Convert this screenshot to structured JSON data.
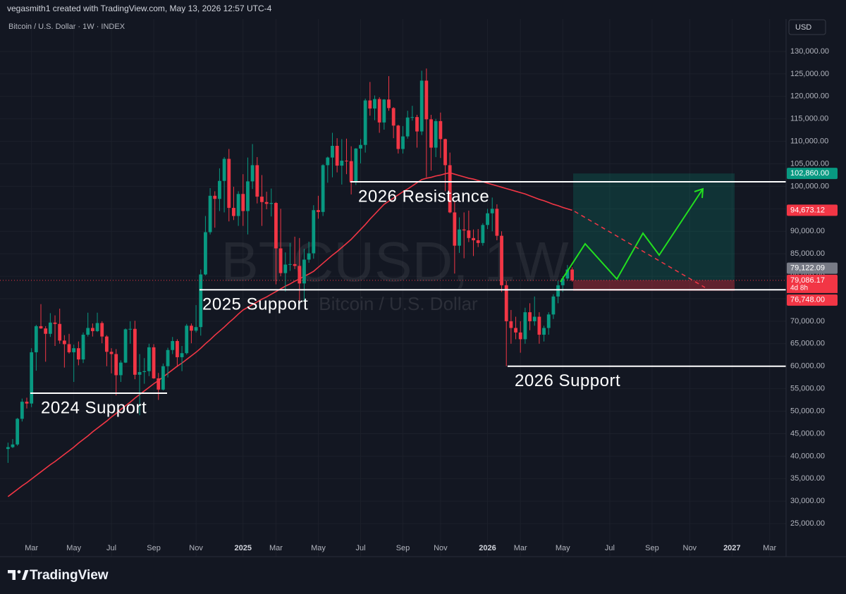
{
  "header": "vegasmith1 created with TradingView.com, May 13, 2026 12:57 UTC-4",
  "footer": {
    "brand": "TradingView"
  },
  "chart_data": {
    "type": "candlestick",
    "title": "Bitcoin / U.S. Dollar · 1W · INDEX",
    "watermark": "BTCUSD, 1W",
    "watermark_subtitle": "Bitcoin / U.S. Dollar",
    "currency": "USD",
    "up_color": "#089981",
    "down_color": "#f23645",
    "grid": true,
    "ylim": [
      17650,
      137200
    ],
    "yticks": [
      {
        "value": 25000,
        "label": "25,000.00"
      },
      {
        "value": 30000,
        "label": "30,000.00"
      },
      {
        "value": 35000,
        "label": "35,000.00"
      },
      {
        "value": 40000,
        "label": "40,000.00"
      },
      {
        "value": 45000,
        "label": "45,000.00"
      },
      {
        "value": 50000,
        "label": "50,000.00"
      },
      {
        "value": 55000,
        "label": "55,000.00"
      },
      {
        "value": 60000,
        "label": "60,000.00"
      },
      {
        "value": 65000,
        "label": "65,000.00"
      },
      {
        "value": 70000,
        "label": "70,000.00"
      },
      {
        "value": 75000,
        "label": "75,000.00"
      },
      {
        "value": 80000,
        "label": "80,000.00"
      },
      {
        "value": 85000,
        "label": "85,000.00"
      },
      {
        "value": 90000,
        "label": "90,000.00"
      },
      {
        "value": 95000,
        "label": "95,000.00"
      },
      {
        "value": 100000,
        "label": "100,000.00"
      },
      {
        "value": 105000,
        "label": "105,000.00"
      },
      {
        "value": 110000,
        "label": "110,000.00"
      },
      {
        "value": 115000,
        "label": "115,000.00"
      },
      {
        "value": 120000,
        "label": "120,000.00"
      },
      {
        "value": 125000,
        "label": "125,000.00"
      },
      {
        "value": 130000,
        "label": "130,000.00"
      }
    ],
    "categories": [
      null,
      null,
      null,
      null,
      null,
      "Mar",
      null,
      null,
      null,
      null,
      null,
      null,
      null,
      null,
      "May",
      null,
      null,
      null,
      null,
      null,
      null,
      null,
      "Jul",
      null,
      null,
      null,
      null,
      null,
      null,
      null,
      null,
      "Sep",
      null,
      null,
      null,
      null,
      null,
      null,
      null,
      null,
      "Nov",
      null,
      null,
      null,
      null,
      null,
      null,
      null,
      null,
      null,
      "2025",
      null,
      null,
      null,
      null,
      null,
      null,
      "Mar",
      null,
      null,
      null,
      null,
      null,
      null,
      null,
      null,
      "May",
      null,
      null,
      null,
      null,
      null,
      null,
      null,
      null,
      "Jul",
      null,
      null,
      null,
      null,
      null,
      null,
      null,
      null,
      "Sep",
      null,
      null,
      null,
      null,
      null,
      null,
      null,
      "Nov",
      null,
      null,
      null,
      null,
      null,
      null,
      null,
      null,
      null,
      "2026",
      null,
      null,
      null,
      null,
      null,
      null,
      "Mar",
      null,
      null,
      null,
      null,
      null,
      null,
      null,
      null,
      "May",
      null,
      null,
      null,
      null,
      null,
      null,
      null,
      null,
      null,
      "Jul",
      null,
      null,
      null,
      null,
      null,
      null,
      null,
      null,
      "Sep",
      null,
      null,
      null,
      null,
      null,
      null,
      null,
      "Nov",
      null,
      null,
      null,
      null,
      null,
      null,
      null,
      null,
      "2027",
      null,
      null,
      null,
      null,
      null,
      null,
      null,
      "Mar",
      null,
      null,
      null
    ],
    "open": [
      41600,
      42000,
      42600,
      48300,
      52100,
      51700,
      63100,
      68900,
      68400,
      67200,
      69700,
      69400,
      65700,
      64900,
      63100,
      64000,
      61500,
      67000,
      68500,
      67800,
      69600,
      66600,
      63200,
      62700,
      58000,
      60800,
      68200,
      68300,
      58100,
      58700,
      58900,
      64200,
      57300,
      54800,
      60000,
      63600,
      65600,
      62000,
      62900,
      69000,
      67900,
      68700,
      80400,
      89800,
      97900,
      97200,
      101200,
      106100,
      95200,
      93400,
      98300,
      94500,
      101100,
      104700,
      97700,
      96500,
      96100,
      96300,
      86200,
      80700,
      82600,
      82700,
      82300,
      78400,
      83700,
      85100,
      94700,
      94300,
      104700,
      106400,
      109000,
      104600,
      105700,
      105600,
      100900,
      108400,
      109200,
      119100,
      117300,
      119400,
      114200,
      119300,
      117400,
      113500,
      108300,
      111100,
      115300,
      115400,
      112200,
      123500,
      114900,
      108600,
      114500,
      110500,
      104700,
      94200,
      86800,
      90400,
      90200,
      88500,
      88000,
      87400,
      91400,
      94000,
      95000,
      89000,
      78000,
      70000,
      68500,
      67500,
      66000,
      72000,
      70000,
      71000,
      67000,
      68500,
      71500,
      75500,
      78000,
      79500,
      81500,
      null,
      null,
      null,
      null,
      null,
      null,
      null,
      null,
      null,
      null,
      null,
      null,
      null,
      null,
      null,
      null,
      null,
      null,
      null,
      null,
      null,
      null,
      null,
      null,
      null,
      null,
      null,
      null,
      null,
      null,
      null,
      null,
      null,
      null,
      null,
      null,
      null,
      null,
      null,
      null,
      null,
      null,
      null,
      null,
      null
    ],
    "high": [
      43000,
      43800,
      48500,
      52800,
      53000,
      64000,
      69200,
      73800,
      68900,
      71800,
      71300,
      72800,
      66900,
      67200,
      64800,
      65500,
      67500,
      71900,
      69500,
      71900,
      70000,
      66900,
      64000,
      63800,
      61300,
      68400,
      70000,
      70100,
      62700,
      61800,
      65000,
      64900,
      58500,
      60600,
      64100,
      66500,
      66000,
      64500,
      69400,
      69500,
      73600,
      81500,
      93400,
      99600,
      98900,
      104000,
      106500,
      108300,
      99900,
      98900,
      102700,
      106400,
      109400,
      106500,
      102500,
      98800,
      99500,
      96500,
      95000,
      85300,
      87400,
      88800,
      88500,
      86100,
      87700,
      95800,
      97900,
      104900,
      106600,
      111900,
      110700,
      110500,
      110600,
      108900,
      108500,
      110500,
      119500,
      123200,
      120200,
      119800,
      119400,
      124500,
      117600,
      113700,
      113400,
      116800,
      117900,
      115900,
      125700,
      126200,
      115900,
      115000,
      116400,
      110600,
      107500,
      96600,
      93100,
      94200,
      94600,
      90400,
      90500,
      91800,
      95000,
      97500,
      96000,
      90000,
      79000,
      72500,
      71000,
      70000,
      73000,
      74000,
      75500,
      72000,
      69000,
      72000,
      76000,
      79000,
      80000,
      82500,
      82000,
      null,
      null,
      null,
      null,
      null,
      null,
      null,
      null,
      null,
      null,
      null,
      null,
      null,
      null,
      null,
      null,
      null,
      null,
      null,
      null,
      null,
      null,
      null,
      null,
      null,
      null,
      null,
      null,
      null,
      null,
      null,
      null,
      null,
      null,
      null,
      null,
      null,
      null,
      null,
      null,
      null,
      null,
      null,
      null,
      null
    ],
    "low": [
      38500,
      41800,
      42300,
      47700,
      50600,
      50900,
      59000,
      68300,
      61000,
      66500,
      64500,
      65000,
      59700,
      62800,
      56500,
      60200,
      60700,
      66600,
      66600,
      67600,
      65100,
      60000,
      58400,
      53500,
      56500,
      60700,
      65000,
      57100,
      49100,
      56100,
      57800,
      57200,
      52500,
      54600,
      57500,
      62700,
      59800,
      58900,
      62600,
      65100,
      67500,
      66800,
      80200,
      89300,
      90800,
      94500,
      94200,
      92200,
      92500,
      91200,
      91200,
      89300,
      99400,
      96200,
      91200,
      94900,
      93300,
      78200,
      80000,
      76600,
      81200,
      81600,
      74400,
      74600,
      83000,
      83900,
      92800,
      93400,
      100800,
      102000,
      103100,
      100400,
      102700,
      98200,
      100300,
      105100,
      107500,
      115700,
      114700,
      111900,
      112600,
      116800,
      110700,
      107300,
      107300,
      110600,
      114600,
      108600,
      111400,
      102000,
      103500,
      106500,
      106300,
      98900,
      94000,
      80600,
      85200,
      84000,
      87600,
      84500,
      86500,
      86800,
      90500,
      90000,
      88000,
      76500,
      60000,
      65000,
      66000,
      63000,
      65000,
      68000,
      69000,
      65000,
      65500,
      67000,
      70500,
      74000,
      76500,
      79000,
      78800,
      null,
      null,
      null,
      null,
      null,
      null,
      null,
      null,
      null,
      null,
      null,
      null,
      null,
      null,
      null,
      null,
      null,
      null,
      null,
      null,
      null,
      null,
      null,
      null,
      null,
      null,
      null,
      null,
      null,
      null,
      null,
      null,
      null,
      null,
      null,
      null,
      null,
      null,
      null,
      null,
      null,
      null,
      null,
      null,
      null
    ],
    "close": [
      42000,
      42600,
      48300,
      52100,
      51700,
      63100,
      68900,
      68400,
      67200,
      69700,
      69400,
      65700,
      64900,
      63100,
      64000,
      61500,
      67000,
      68500,
      67800,
      69600,
      66600,
      63200,
      62700,
      58000,
      60800,
      68200,
      68300,
      58100,
      58700,
      58900,
      64200,
      57300,
      54800,
      60000,
      63600,
      65600,
      62000,
      62900,
      69000,
      67900,
      68700,
      80400,
      89800,
      97900,
      97200,
      101200,
      106100,
      95200,
      93400,
      98300,
      94500,
      101100,
      104700,
      97700,
      96500,
      96100,
      96300,
      86200,
      80700,
      82600,
      82700,
      82300,
      78400,
      83700,
      85100,
      94700,
      94300,
      104700,
      106400,
      109000,
      104600,
      105700,
      105600,
      100900,
      108400,
      109200,
      119100,
      117300,
      119400,
      114200,
      119300,
      117400,
      113500,
      108300,
      111100,
      115300,
      115400,
      112200,
      123500,
      114900,
      108600,
      114500,
      110500,
      104700,
      94200,
      86800,
      90400,
      90200,
      88500,
      88000,
      87400,
      91400,
      94000,
      95000,
      89000,
      78000,
      70000,
      68500,
      67500,
      66000,
      72000,
      70000,
      71000,
      67000,
      68500,
      71500,
      75500,
      78000,
      79500,
      81500,
      79086.17,
      null,
      null,
      null,
      null,
      null,
      null,
      null,
      null,
      null,
      null,
      null,
      null,
      null,
      null,
      null,
      null,
      null,
      null,
      null,
      null,
      null,
      null,
      null,
      null,
      null,
      null,
      null,
      null,
      null,
      null,
      null,
      null,
      null,
      null,
      null,
      null,
      null,
      null,
      null,
      null,
      null,
      null,
      null,
      null,
      null
    ],
    "last_value_label": "79,086.17",
    "countdown": "4d 8h",
    "ma": {
      "color": "#f23645",
      "last_value_label": "94,673.12",
      "values": [
        31000,
        31800,
        32600,
        33400,
        34100,
        34900,
        35700,
        36500,
        37300,
        38100,
        38800,
        39600,
        40400,
        41200,
        42000,
        42900,
        43700,
        44500,
        45400,
        46200,
        47000,
        47800,
        48700,
        49500,
        50400,
        51200,
        52000,
        52900,
        53700,
        54500,
        55300,
        56100,
        56800,
        57600,
        58400,
        59200,
        60000,
        60700,
        61500,
        62300,
        63100,
        64000,
        65000,
        65900,
        66900,
        67800,
        68700,
        69700,
        70600,
        71600,
        72500,
        73100,
        73700,
        74300,
        74900,
        75400,
        76000,
        76600,
        77200,
        77800,
        78300,
        78900,
        79400,
        80000,
        80500,
        81100,
        82000,
        82900,
        83800,
        84700,
        85500,
        86400,
        87300,
        88200,
        89300,
        90400,
        91500,
        92700,
        93800,
        94900,
        96000,
        96700,
        97400,
        98100,
        98800,
        99400,
        100100,
        100800,
        101500,
        101800,
        102000,
        102300,
        102500,
        102800,
        103000,
        102700,
        102400,
        102100,
        101800,
        101600,
        101300,
        101000,
        100700,
        100400,
        100100,
        99800,
        99500,
        99200,
        98900,
        98600,
        98300,
        97900,
        97500,
        97100,
        96800,
        96400,
        96000,
        95700,
        95300,
        95000,
        94673.12,
        null,
        null,
        null,
        null,
        null,
        null,
        null,
        null,
        null,
        null,
        null,
        null,
        null,
        null,
        null,
        null,
        null,
        null,
        null,
        null,
        null,
        null,
        null,
        null,
        null,
        null,
        null,
        null,
        null,
        null,
        null,
        null,
        null,
        null,
        null,
        null,
        null,
        null,
        null,
        null,
        null,
        null,
        null,
        null,
        null
      ]
    },
    "levels": [
      {
        "label": "2024 Support",
        "value": 54000
      },
      {
        "label": "2025 Support",
        "value": 77000
      },
      {
        "label": "2026 Resistance",
        "value": 101000
      },
      {
        "label": "2026 Support",
        "value": 60000
      }
    ],
    "position": {
      "target": {
        "value": 102860,
        "label": "102,860.00"
      },
      "entry": {
        "value": 79122.09,
        "label": "79,122.09"
      },
      "stop": {
        "value": 76748,
        "label": "76,748.00"
      }
    }
  }
}
